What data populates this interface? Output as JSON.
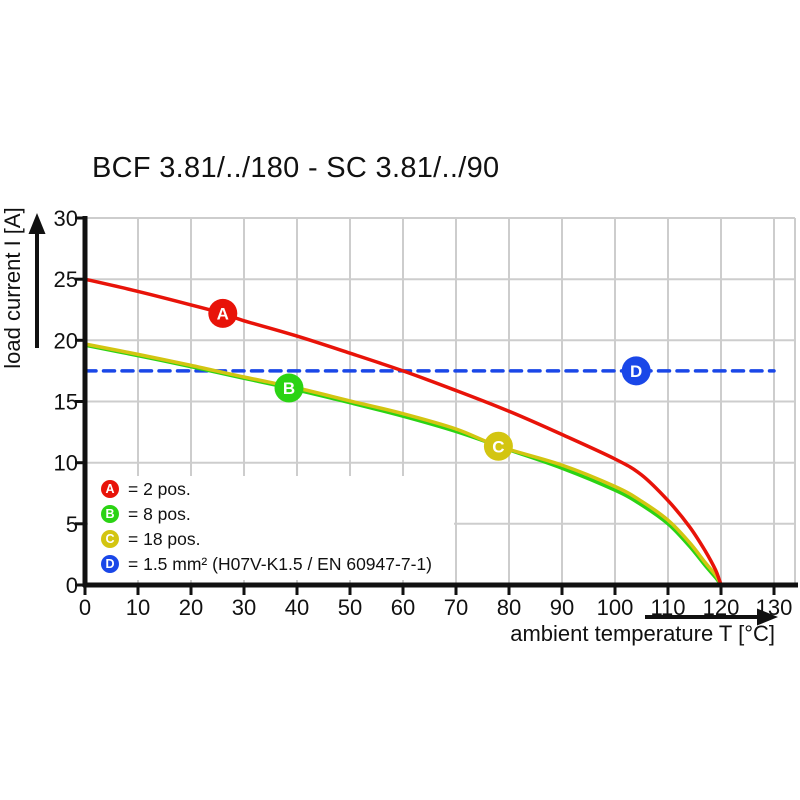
{
  "title": "BCF 3.81/../180 - SC 3.81/../90",
  "colors": {
    "red": "#e81309",
    "green": "#2bd314",
    "yellow": "#d3c511",
    "blue": "#1a47e8",
    "grid": "#cdcdcd",
    "axis": "#111111",
    "marker_letter": "#ffffff",
    "background": "#ffffff"
  },
  "chart_data": {
    "type": "line",
    "title": "BCF 3.81/../180 - SC 3.81/../90",
    "xlabel": "ambient temperature T [°C]",
    "ylabel": "load current I [A]",
    "xlim": [
      0,
      130
    ],
    "ylim": [
      0,
      30
    ],
    "xticks": [
      0,
      10,
      20,
      30,
      40,
      50,
      60,
      70,
      80,
      90,
      100,
      110,
      120,
      130
    ],
    "yticks": [
      0,
      5,
      10,
      15,
      20,
      25,
      30
    ],
    "grid": true,
    "legend_position": "lower left",
    "series": [
      {
        "id": "D",
        "name": "= 1.5 mm² (H07V-K1.5 / EN 60947-7-1)",
        "color": "#1a47e8",
        "style": "dashed",
        "points": [
          [
            0,
            17.5
          ],
          [
            130,
            17.5
          ]
        ],
        "marker": {
          "label": "D",
          "x": 104,
          "y": 17.5
        }
      },
      {
        "id": "B",
        "name": "= 8 pos.",
        "color": "#2bd314",
        "style": "solid",
        "points": [
          [
            0,
            19.6
          ],
          [
            10,
            18.75
          ],
          [
            20,
            17.85
          ],
          [
            30,
            16.9
          ],
          [
            38.5,
            16.1
          ],
          [
            50,
            14.9
          ],
          [
            60,
            13.8
          ],
          [
            70,
            12.55
          ],
          [
            80,
            11.05
          ],
          [
            90,
            9.55
          ],
          [
            100,
            7.75
          ],
          [
            105,
            6.55
          ],
          [
            110,
            5.0
          ],
          [
            114,
            3.2
          ],
          [
            117,
            1.6
          ],
          [
            119,
            0.6
          ],
          [
            120,
            0
          ]
        ],
        "marker": {
          "label": "B",
          "x": 38.5,
          "y": 16.1
        }
      },
      {
        "id": "C",
        "name": "= 18 pos.",
        "color": "#d3c511",
        "style": "solid",
        "points": [
          [
            0,
            19.7
          ],
          [
            10,
            18.85
          ],
          [
            20,
            17.95
          ],
          [
            30,
            17.0
          ],
          [
            40,
            16.1
          ],
          [
            50,
            15.05
          ],
          [
            60,
            14.0
          ],
          [
            70,
            12.75
          ],
          [
            78,
            11.35
          ],
          [
            90,
            9.8
          ],
          [
            100,
            8.05
          ],
          [
            105,
            6.85
          ],
          [
            110,
            5.3
          ],
          [
            114,
            3.5
          ],
          [
            117,
            1.85
          ],
          [
            119,
            0.8
          ],
          [
            120,
            0.05
          ]
        ],
        "marker": {
          "label": "C",
          "x": 78,
          "y": 11.35
        }
      },
      {
        "id": "A",
        "name": "= 2 pos.",
        "color": "#e81309",
        "style": "solid",
        "points": [
          [
            0,
            25
          ],
          [
            10,
            24.0
          ],
          [
            20,
            22.9
          ],
          [
            26,
            22.2
          ],
          [
            30,
            21.6
          ],
          [
            40,
            20.35
          ],
          [
            50,
            18.95
          ],
          [
            60,
            17.5
          ],
          [
            70,
            15.9
          ],
          [
            80,
            14.2
          ],
          [
            90,
            12.3
          ],
          [
            100,
            10.3
          ],
          [
            105,
            9.0
          ],
          [
            110,
            6.9
          ],
          [
            114,
            4.8
          ],
          [
            117,
            2.8
          ],
          [
            119,
            1.2
          ],
          [
            120,
            0
          ]
        ],
        "marker": {
          "label": "A",
          "x": 26,
          "y": 22.2
        }
      }
    ]
  },
  "legend": {
    "items": [
      {
        "letter": "A",
        "color": "#e81309",
        "label": "= 2 pos."
      },
      {
        "letter": "B",
        "color": "#2bd314",
        "label": "= 8 pos."
      },
      {
        "letter": "C",
        "color": "#d3c511",
        "label": "= 18 pos."
      },
      {
        "letter": "D",
        "color": "#1a47e8",
        "label": "= 1.5 mm² (H07V-K1.5 / EN 60947-7-1)"
      }
    ]
  }
}
